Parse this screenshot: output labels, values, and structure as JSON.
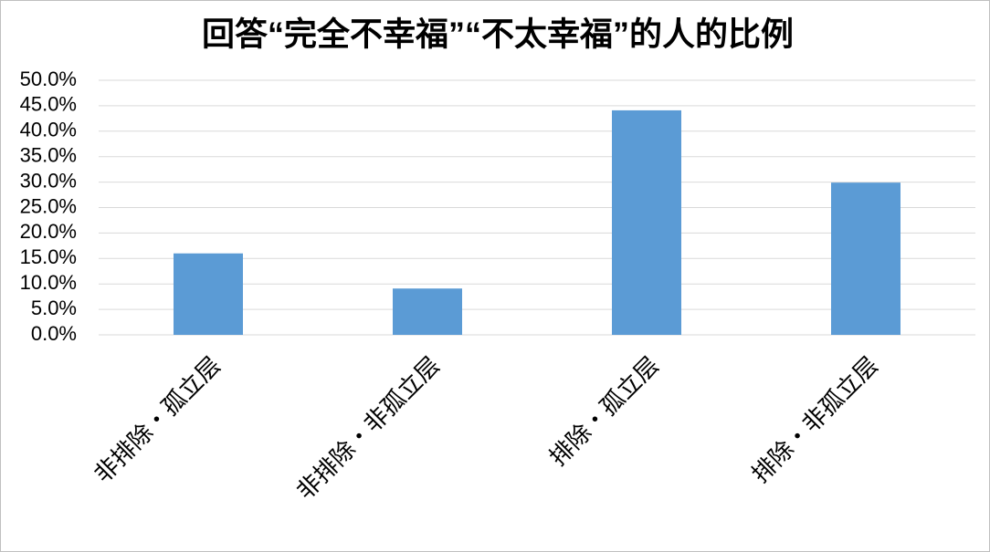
{
  "chart_data": {
    "type": "bar",
    "title": "回答“完全不幸福”“不太幸福”的人的比例",
    "categories": [
      "非排除・孤立层",
      "非排除・非孤立层",
      "排除・孤立层",
      "排除・非孤立层"
    ],
    "values": [
      16.0,
      9.1,
      44.1,
      29.9
    ],
    "color": "#5b9bd5",
    "ylim": [
      0,
      50
    ],
    "yticks": [
      {
        "value": 0,
        "label": "0.0%"
      },
      {
        "value": 5,
        "label": "5.0%"
      },
      {
        "value": 10,
        "label": "10.0%"
      },
      {
        "value": 15,
        "label": "15.0%"
      },
      {
        "value": 20,
        "label": "20.0%"
      },
      {
        "value": 25,
        "label": "25.0%"
      },
      {
        "value": 30,
        "label": "30.0%"
      },
      {
        "value": 35,
        "label": "35.0%"
      },
      {
        "value": 40,
        "label": "40.0%"
      },
      {
        "value": 45,
        "label": "45.0%"
      },
      {
        "value": 50,
        "label": "50.0%"
      }
    ],
    "grid": true
  }
}
